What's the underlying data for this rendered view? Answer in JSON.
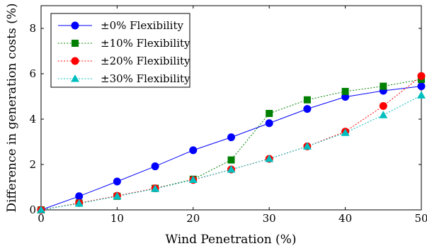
{
  "chart_data": {
    "type": "line",
    "xlabel": "Wind Penetration (%)",
    "ylabel": "Difference in generation costs (%)",
    "xlim": [
      0,
      50
    ],
    "ylim": [
      0,
      9
    ],
    "x_ticks": [
      0,
      10,
      20,
      30,
      40,
      50
    ],
    "y_ticks": [
      0,
      2,
      4,
      6,
      8
    ],
    "grid": false,
    "legend_position": "top-left",
    "x": [
      0,
      5,
      10,
      15,
      20,
      25,
      30,
      35,
      40,
      45,
      50
    ],
    "series": [
      {
        "name": "±0% Flexibility",
        "color": "#0000ff",
        "line": "solid",
        "marker": "circle",
        "values": [
          0,
          0.6,
          1.25,
          1.92,
          2.63,
          3.2,
          3.82,
          4.45,
          4.98,
          5.25,
          5.45
        ]
      },
      {
        "name": "±10% Flexibility",
        "color": "#008000",
        "line": "dotted",
        "marker": "square",
        "values": [
          0,
          0.3,
          0.6,
          0.95,
          1.35,
          2.2,
          4.25,
          4.85,
          5.22,
          5.45,
          5.75
        ]
      },
      {
        "name": "±20% Flexibility",
        "color": "#ff0000",
        "line": "dotted",
        "marker": "circle",
        "values": [
          0,
          0.3,
          0.62,
          0.95,
          1.32,
          1.78,
          2.25,
          2.8,
          3.45,
          4.58,
          5.9
        ]
      },
      {
        "name": "±30% Flexibility",
        "color": "#00bfbf",
        "line": "dotted",
        "marker": "triangle",
        "values": [
          0,
          0.28,
          0.6,
          0.93,
          1.33,
          1.78,
          2.25,
          2.8,
          3.4,
          4.18,
          5.05
        ]
      }
    ]
  }
}
